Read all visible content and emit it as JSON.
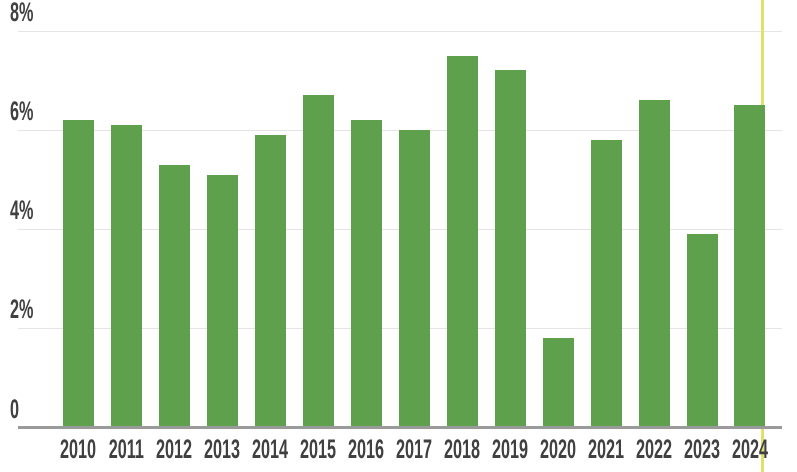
{
  "chart_data": {
    "type": "bar",
    "categories": [
      "2010",
      "2011",
      "2012",
      "2013",
      "2014",
      "2015",
      "2016",
      "2017",
      "2018",
      "2019",
      "2020",
      "2021",
      "2022",
      "2023",
      "2024"
    ],
    "values": [
      6.2,
      6.1,
      5.3,
      5.1,
      5.9,
      6.7,
      6.2,
      6.0,
      7.5,
      7.2,
      1.8,
      5.8,
      6.6,
      3.9,
      6.5
    ],
    "unit": "%",
    "title": "",
    "xlabel": "",
    "ylabel": "",
    "ylim": [
      0,
      8
    ],
    "yticks": [
      {
        "value": 8,
        "label": "8%"
      },
      {
        "value": 6,
        "label": "6%"
      },
      {
        "value": 4,
        "label": "4%"
      },
      {
        "value": 2,
        "label": "2%"
      },
      {
        "value": 0,
        "label": "0"
      }
    ],
    "grid": true,
    "legend": "none",
    "hover_cursor": {
      "category": "2024"
    },
    "colors": {
      "bar": "#5fa04c",
      "axis_text": "#404040",
      "gridline": "#e4e4e4",
      "axis_line": "#9a9a9a",
      "hover_cursor": "#dce26a",
      "background": "#ffffff"
    }
  }
}
